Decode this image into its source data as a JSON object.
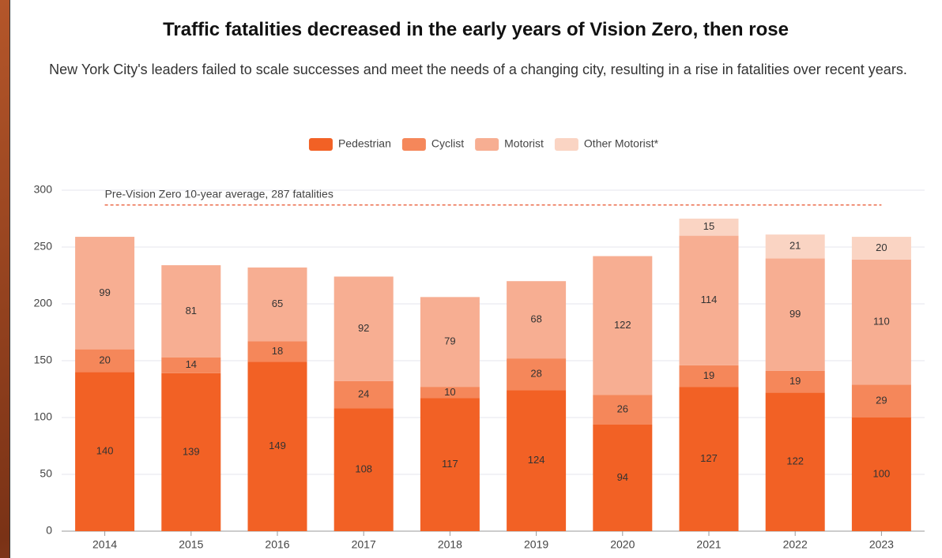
{
  "chart_data": {
    "type": "stacked_bar",
    "title": "Traffic fatalities decreased in the early years of Vision Zero, then rose",
    "subtitle": "New York City's leaders failed to scale successes and meet the needs of a changing city, resulting in a rise in fatalities over recent years.",
    "categories": [
      "2014",
      "2015",
      "2016",
      "2017",
      "2018",
      "2019",
      "2020",
      "2021",
      "2022",
      "2023"
    ],
    "series": [
      {
        "name": "Pedestrian",
        "color": "#f26125",
        "values": [
          140,
          139,
          149,
          108,
          117,
          124,
          94,
          127,
          122,
          100
        ]
      },
      {
        "name": "Cyclist",
        "color": "#f5875a",
        "values": [
          20,
          14,
          18,
          24,
          10,
          28,
          26,
          19,
          19,
          29
        ]
      },
      {
        "name": "Motorist",
        "color": "#f7ae92",
        "values": [
          99,
          81,
          65,
          92,
          79,
          68,
          122,
          114,
          99,
          110
        ]
      },
      {
        "name": "Other Motorist*",
        "color": "#fad4c3",
        "values": [
          null,
          null,
          null,
          null,
          null,
          null,
          null,
          15,
          21,
          20
        ]
      }
    ],
    "reference_line": {
      "value": 287,
      "label": "Pre-Vision Zero 10-year average, 287 fatalities",
      "color": "#e8502a"
    },
    "ylim": [
      0,
      300
    ],
    "yticks": [
      0,
      50,
      100,
      150,
      200,
      250,
      300
    ],
    "grid": true,
    "legend": "top"
  }
}
